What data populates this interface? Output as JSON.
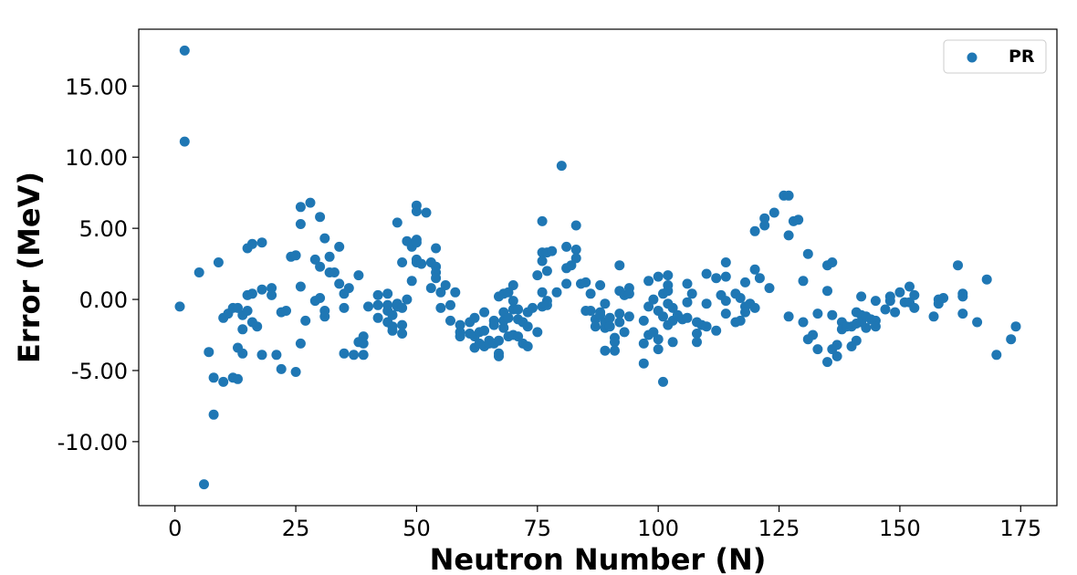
{
  "chart_data": {
    "type": "scatter",
    "xlabel": "Neutron Number (N)",
    "ylabel": "Error (MeV)",
    "xlim": [
      -7.5,
      182.5
    ],
    "ylim": [
      -14.5,
      19.0
    ],
    "xticks": [
      0,
      25,
      50,
      75,
      100,
      125,
      150,
      175
    ],
    "xtick_labels": [
      "0",
      "25",
      "50",
      "75",
      "100",
      "125",
      "150",
      "175"
    ],
    "yticks": [
      -10,
      -5,
      0,
      5,
      10,
      15
    ],
    "ytick_labels": [
      "-10.00",
      "-5.00",
      "0.00",
      "5.00",
      "10.00",
      "15.00"
    ],
    "grid": false,
    "legend_position": "upper right",
    "series": [
      {
        "name": "PR",
        "color": "#1f77b4",
        "points": [
          [
            1,
            -0.5
          ],
          [
            2,
            17.5
          ],
          [
            2,
            11.1
          ],
          [
            5,
            1.9
          ],
          [
            6,
            -13.0
          ],
          [
            7,
            -3.7
          ],
          [
            8,
            -5.5
          ],
          [
            8,
            -8.1
          ],
          [
            9,
            2.6
          ],
          [
            10,
            -1.3
          ],
          [
            10,
            -5.8
          ],
          [
            11,
            -1.0
          ],
          [
            12,
            -0.6
          ],
          [
            12,
            -5.5
          ],
          [
            13,
            -5.6
          ],
          [
            13,
            -3.4
          ],
          [
            13,
            -0.6
          ],
          [
            14,
            -2.1
          ],
          [
            14,
            -3.8
          ],
          [
            14,
            -1.1
          ],
          [
            15,
            3.6
          ],
          [
            15,
            0.3
          ],
          [
            15,
            -0.8
          ],
          [
            16,
            3.9
          ],
          [
            16,
            0.4
          ],
          [
            16,
            -1.6
          ],
          [
            17,
            -1.9
          ],
          [
            18,
            4.0
          ],
          [
            18,
            0.7
          ],
          [
            18,
            -3.9
          ],
          [
            20,
            0.8
          ],
          [
            20,
            0.3
          ],
          [
            21,
            -3.9
          ],
          [
            22,
            -4.9
          ],
          [
            22,
            -0.9
          ],
          [
            23,
            -0.8
          ],
          [
            24,
            3.0
          ],
          [
            25,
            3.1
          ],
          [
            25,
            -5.1
          ],
          [
            26,
            6.5
          ],
          [
            26,
            5.3
          ],
          [
            26,
            0.9
          ],
          [
            26,
            -3.1
          ],
          [
            27,
            -1.5
          ],
          [
            28,
            6.8
          ],
          [
            29,
            2.8
          ],
          [
            29,
            -0.1
          ],
          [
            30,
            5.8
          ],
          [
            30,
            2.3
          ],
          [
            30,
            0.1
          ],
          [
            31,
            4.3
          ],
          [
            31,
            -0.8
          ],
          [
            31,
            -1.2
          ],
          [
            32,
            3.0
          ],
          [
            32,
            1.9
          ],
          [
            33,
            1.9
          ],
          [
            34,
            3.7
          ],
          [
            34,
            1.1
          ],
          [
            35,
            -3.8
          ],
          [
            35,
            0.4
          ],
          [
            35,
            -0.6
          ],
          [
            36,
            0.8
          ],
          [
            37,
            -3.9
          ],
          [
            38,
            1.7
          ],
          [
            38,
            -3.0
          ],
          [
            39,
            -3.9
          ],
          [
            39,
            -3.1
          ],
          [
            39,
            -2.6
          ],
          [
            40,
            -0.5
          ],
          [
            42,
            0.3
          ],
          [
            42,
            -0.4
          ],
          [
            42,
            -1.3
          ],
          [
            44,
            0.4
          ],
          [
            44,
            -0.4
          ],
          [
            44,
            -0.8
          ],
          [
            44,
            -1.6
          ],
          [
            45,
            -1.1
          ],
          [
            45,
            -1.9
          ],
          [
            45,
            -2.2
          ],
          [
            46,
            5.4
          ],
          [
            46,
            -0.3
          ],
          [
            46,
            -0.5
          ],
          [
            47,
            2.6
          ],
          [
            47,
            -0.6
          ],
          [
            47,
            -1.8
          ],
          [
            47,
            -2.4
          ],
          [
            48,
            4.1
          ],
          [
            48,
            0.0
          ],
          [
            49,
            3.7
          ],
          [
            49,
            1.3
          ],
          [
            50,
            6.6
          ],
          [
            50,
            6.2
          ],
          [
            50,
            4.2
          ],
          [
            50,
            4.0
          ],
          [
            50,
            2.6
          ],
          [
            50,
            2.8
          ],
          [
            51,
            2.5
          ],
          [
            52,
            6.1
          ],
          [
            53,
            0.8
          ],
          [
            53,
            2.6
          ],
          [
            54,
            3.6
          ],
          [
            54,
            2.3
          ],
          [
            54,
            1.9
          ],
          [
            54,
            1.5
          ],
          [
            55,
            0.5
          ],
          [
            55,
            -0.6
          ],
          [
            56,
            1.0
          ],
          [
            57,
            -0.4
          ],
          [
            57,
            -1.5
          ],
          [
            58,
            0.5
          ],
          [
            59,
            -1.8
          ],
          [
            59,
            -2.3
          ],
          [
            59,
            -2.6
          ],
          [
            61,
            -1.6
          ],
          [
            61,
            -2.4
          ],
          [
            62,
            -1.3
          ],
          [
            62,
            -2.6
          ],
          [
            62,
            -3.4
          ],
          [
            63,
            -2.3
          ],
          [
            63,
            -3.1
          ],
          [
            64,
            -0.9
          ],
          [
            64,
            -2.2
          ],
          [
            64,
            -3.3
          ],
          [
            65,
            -2.9
          ],
          [
            65,
            -3.1
          ],
          [
            66,
            -1.5
          ],
          [
            66,
            -1.8
          ],
          [
            66,
            -3.1
          ],
          [
            67,
            0.2
          ],
          [
            67,
            -2.9
          ],
          [
            67,
            -3.8
          ],
          [
            67,
            -4.0
          ],
          [
            68,
            0.4
          ],
          [
            68,
            -0.9
          ],
          [
            68,
            -1.5
          ],
          [
            68,
            -2.0
          ],
          [
            69,
            0.5
          ],
          [
            69,
            -1.3
          ],
          [
            69,
            -2.6
          ],
          [
            70,
            1.0
          ],
          [
            70,
            -0.1
          ],
          [
            70,
            -0.7
          ],
          [
            70,
            -2.5
          ],
          [
            71,
            -0.7
          ],
          [
            71,
            -1.4
          ],
          [
            71,
            -2.6
          ],
          [
            72,
            -1.6
          ],
          [
            72,
            -3.1
          ],
          [
            73,
            -1.9
          ],
          [
            73,
            -3.3
          ],
          [
            73,
            -0.9
          ],
          [
            74,
            -0.6
          ],
          [
            75,
            -2.3
          ],
          [
            75,
            1.7
          ],
          [
            76,
            5.5
          ],
          [
            76,
            3.3
          ],
          [
            76,
            2.7
          ],
          [
            76,
            0.5
          ],
          [
            76,
            -0.5
          ],
          [
            77,
            3.3
          ],
          [
            77,
            2.0
          ],
          [
            77,
            -0.1
          ],
          [
            77,
            -0.4
          ],
          [
            78,
            3.4
          ],
          [
            79,
            0.5
          ],
          [
            80,
            9.4
          ],
          [
            81,
            3.7
          ],
          [
            81,
            2.2
          ],
          [
            81,
            1.1
          ],
          [
            82,
            2.4
          ],
          [
            83,
            5.2
          ],
          [
            83,
            3.5
          ],
          [
            83,
            2.9
          ],
          [
            84,
            1.1
          ],
          [
            85,
            1.2
          ],
          [
            85,
            -0.8
          ],
          [
            86,
            -0.8
          ],
          [
            86,
            0.4
          ],
          [
            87,
            -1.4
          ],
          [
            87,
            -1.9
          ],
          [
            88,
            1.0
          ],
          [
            88,
            -0.9
          ],
          [
            88,
            -1.1
          ],
          [
            89,
            -0.3
          ],
          [
            89,
            -1.6
          ],
          [
            89,
            -2.0
          ],
          [
            89,
            -3.6
          ],
          [
            90,
            -1.3
          ],
          [
            90,
            -1.9
          ],
          [
            91,
            -2.7
          ],
          [
            91,
            -3.0
          ],
          [
            91,
            -3.6
          ],
          [
            92,
            2.4
          ],
          [
            92,
            0.6
          ],
          [
            92,
            -1.0
          ],
          [
            92,
            -1.6
          ],
          [
            93,
            0.3
          ],
          [
            93,
            -2.3
          ],
          [
            94,
            0.8
          ],
          [
            94,
            0.4
          ],
          [
            94,
            -1.2
          ],
          [
            97,
            -4.5
          ],
          [
            97,
            -1.5
          ],
          [
            97,
            -3.1
          ],
          [
            98,
            1.3
          ],
          [
            98,
            -2.5
          ],
          [
            98,
            -0.5
          ],
          [
            99,
            -2.3
          ],
          [
            99,
            0.0
          ],
          [
            100,
            1.6
          ],
          [
            100,
            -0.8
          ],
          [
            100,
            -2.8
          ],
          [
            100,
            -3.5
          ],
          [
            101,
            0.4
          ],
          [
            101,
            -1.2
          ],
          [
            101,
            -5.8
          ],
          [
            102,
            1.7
          ],
          [
            102,
            1.0
          ],
          [
            102,
            0.6
          ],
          [
            102,
            -0.3
          ],
          [
            102,
            -1.8
          ],
          [
            103,
            -0.6
          ],
          [
            103,
            -1.5
          ],
          [
            103,
            -3.0
          ],
          [
            104,
            -1.1
          ],
          [
            105,
            -1.4
          ],
          [
            106,
            1.1
          ],
          [
            106,
            -0.2
          ],
          [
            106,
            -1.3
          ],
          [
            107,
            0.4
          ],
          [
            108,
            -1.6
          ],
          [
            108,
            -2.4
          ],
          [
            108,
            -3.0
          ],
          [
            109,
            -1.8
          ],
          [
            110,
            1.8
          ],
          [
            110,
            -0.3
          ],
          [
            110,
            -1.9
          ],
          [
            112,
            1.5
          ],
          [
            112,
            -2.2
          ],
          [
            113,
            0.3
          ],
          [
            114,
            2.6
          ],
          [
            114,
            1.6
          ],
          [
            114,
            -0.1
          ],
          [
            114,
            -1.0
          ],
          [
            116,
            0.4
          ],
          [
            116,
            -1.6
          ],
          [
            117,
            0.1
          ],
          [
            117,
            -1.5
          ],
          [
            118,
            1.2
          ],
          [
            118,
            -0.5
          ],
          [
            118,
            -0.9
          ],
          [
            119,
            -0.3
          ],
          [
            120,
            4.8
          ],
          [
            120,
            2.1
          ],
          [
            120,
            -0.6
          ],
          [
            121,
            1.5
          ],
          [
            122,
            5.7
          ],
          [
            122,
            5.2
          ],
          [
            123,
            0.8
          ],
          [
            124,
            6.1
          ],
          [
            126,
            7.3
          ],
          [
            127,
            7.3
          ],
          [
            127,
            4.5
          ],
          [
            127,
            -1.2
          ],
          [
            128,
            5.5
          ],
          [
            129,
            5.6
          ],
          [
            130,
            1.3
          ],
          [
            130,
            -1.6
          ],
          [
            131,
            3.2
          ],
          [
            131,
            -2.8
          ],
          [
            132,
            -2.5
          ],
          [
            133,
            -1.0
          ],
          [
            133,
            -3.5
          ],
          [
            135,
            2.4
          ],
          [
            135,
            0.6
          ],
          [
            135,
            -4.4
          ],
          [
            136,
            2.6
          ],
          [
            136,
            -1.1
          ],
          [
            136,
            -3.5
          ],
          [
            137,
            -3.2
          ],
          [
            137,
            -4.0
          ],
          [
            138,
            -1.6
          ],
          [
            138,
            -2.1
          ],
          [
            139,
            -1.9
          ],
          [
            140,
            -1.9
          ],
          [
            140,
            -3.3
          ],
          [
            141,
            -0.9
          ],
          [
            141,
            -1.7
          ],
          [
            141,
            -2.9
          ],
          [
            142,
            0.2
          ],
          [
            142,
            -1.1
          ],
          [
            142,
            -1.6
          ],
          [
            143,
            -1.2
          ],
          [
            143,
            -2.0
          ],
          [
            144,
            -1.4
          ],
          [
            145,
            -0.1
          ],
          [
            145,
            -1.5
          ],
          [
            145,
            -1.9
          ],
          [
            147,
            -0.7
          ],
          [
            148,
            0.2
          ],
          [
            148,
            -0.1
          ],
          [
            149,
            -0.9
          ],
          [
            150,
            0.5
          ],
          [
            151,
            -0.2
          ],
          [
            152,
            0.9
          ],
          [
            152,
            -0.2
          ],
          [
            153,
            0.3
          ],
          [
            153,
            -0.6
          ],
          [
            157,
            -1.2
          ],
          [
            158,
            0.0
          ],
          [
            158,
            -0.3
          ],
          [
            159,
            0.1
          ],
          [
            162,
            2.4
          ],
          [
            163,
            0.4
          ],
          [
            163,
            0.2
          ],
          [
            163,
            -1.0
          ],
          [
            166,
            -1.6
          ],
          [
            168,
            1.4
          ],
          [
            170,
            -3.9
          ],
          [
            173,
            -2.8
          ],
          [
            174,
            -1.9
          ]
        ]
      }
    ]
  }
}
